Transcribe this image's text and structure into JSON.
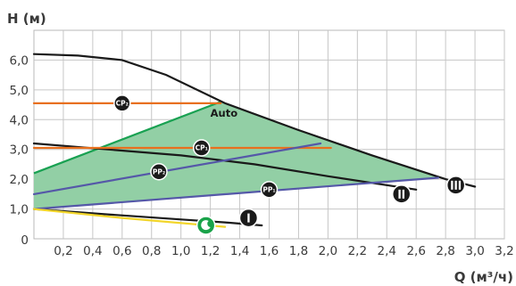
{
  "chart_data": {
    "type": "line",
    "ylabel": "H (м)",
    "xlabel": "Q (м³/ч)",
    "xlim": [
      0,
      3.2
    ],
    "ylim": [
      0,
      7
    ],
    "grid": true,
    "x_ticks": [
      {
        "v": 0.2,
        "label": "0,2"
      },
      {
        "v": 0.4,
        "label": "0,4"
      },
      {
        "v": 0.6,
        "label": "0,6"
      },
      {
        "v": 0.8,
        "label": "0,8"
      },
      {
        "v": 1.0,
        "label": "1,0"
      },
      {
        "v": 1.2,
        "label": "1,2"
      },
      {
        "v": 1.4,
        "label": "1,4"
      },
      {
        "v": 1.6,
        "label": "1,6"
      },
      {
        "v": 1.8,
        "label": "1,8"
      },
      {
        "v": 2.0,
        "label": "2,0"
      },
      {
        "v": 2.2,
        "label": "2,2"
      },
      {
        "v": 2.4,
        "label": "2,4"
      },
      {
        "v": 2.6,
        "label": "2,6"
      },
      {
        "v": 2.8,
        "label": "2,8"
      },
      {
        "v": 3.0,
        "label": "3,0"
      },
      {
        "v": 3.2,
        "label": "3,2"
      }
    ],
    "y_ticks": [
      {
        "v": 1,
        "label": "1,0"
      },
      {
        "v": 2,
        "label": "2,0"
      },
      {
        "v": 3,
        "label": "3,0"
      },
      {
        "v": 4,
        "label": "4,0"
      },
      {
        "v": 5,
        "label": "5,0"
      },
      {
        "v": 6,
        "label": "6,0"
      }
    ],
    "origin_label": "0",
    "auto_area": {
      "label": "Auto",
      "color": "#92cfa5",
      "border": "#19a152",
      "points": [
        [
          0,
          2.2
        ],
        [
          1.27,
          4.6
        ],
        [
          1.8,
          3.65
        ],
        [
          2.77,
          2.05
        ],
        [
          0,
          1.0
        ]
      ]
    },
    "series": [
      {
        "badge": "III",
        "color": "#1a1a1a",
        "dash": false,
        "points": [
          [
            0,
            6.2
          ],
          [
            0.3,
            6.15
          ],
          [
            0.6,
            6.0
          ],
          [
            0.9,
            5.5
          ],
          [
            1.3,
            4.55
          ],
          [
            1.8,
            3.65
          ],
          [
            2.3,
            2.8
          ],
          [
            2.8,
            2.0
          ],
          [
            3.0,
            1.75
          ]
        ]
      },
      {
        "badge": "II",
        "color": "#1a1a1a",
        "dash": false,
        "points": [
          [
            0,
            3.2
          ],
          [
            0.5,
            3.0
          ],
          [
            1.0,
            2.8
          ],
          [
            1.5,
            2.5
          ],
          [
            2.0,
            2.1
          ],
          [
            2.4,
            1.8
          ],
          [
            2.6,
            1.65
          ]
        ]
      },
      {
        "badge": "I",
        "color": "#1a1a1a",
        "dash": false,
        "points": [
          [
            0,
            1.0
          ],
          [
            0.5,
            0.82
          ],
          [
            1.0,
            0.65
          ],
          [
            1.3,
            0.55
          ],
          [
            1.55,
            0.45
          ]
        ]
      },
      {
        "badge": "CP2",
        "color": "#e8701e",
        "dash": false,
        "points": [
          [
            0,
            4.55
          ],
          [
            1.27,
            4.55
          ]
        ]
      },
      {
        "badge": "CP1",
        "color": "#e8701e",
        "dash": false,
        "points": [
          [
            0,
            3.05
          ],
          [
            2.02,
            3.05
          ]
        ]
      },
      {
        "badge": "PP2",
        "color": "#5558a8",
        "dash": false,
        "points": [
          [
            0,
            1.5
          ],
          [
            1.95,
            3.2
          ]
        ]
      },
      {
        "badge": "PP1",
        "color": "#5558a8",
        "dash": false,
        "points": [
          [
            0,
            1.0
          ],
          [
            2.75,
            2.05
          ]
        ]
      },
      {
        "badge": "NIGHT",
        "color": "#f2d52a",
        "dash": false,
        "points": [
          [
            0,
            1.0
          ],
          [
            0.6,
            0.7
          ],
          [
            1.3,
            0.4
          ]
        ]
      }
    ],
    "badges": [
      {
        "id": "CP2",
        "text": "CP₂",
        "color": "#1a1a1a",
        "at": [
          0.6,
          4.55
        ],
        "r": 9
      },
      {
        "id": "CP1",
        "text": "CP₁",
        "color": "#1a1a1a",
        "at": [
          1.14,
          3.05
        ],
        "r": 9
      },
      {
        "id": "PP2",
        "text": "PP₂",
        "color": "#1a1a1a",
        "at": [
          0.85,
          2.25
        ],
        "r": 9
      },
      {
        "id": "PP1",
        "text": "PP₁",
        "color": "#1a1a1a",
        "at": [
          1.6,
          1.65
        ],
        "r": 9
      },
      {
        "id": "III",
        "text": "III",
        "color": "#1a1a1a",
        "at": [
          2.87,
          1.8
        ],
        "r": 10
      },
      {
        "id": "II",
        "text": "II",
        "color": "#1a1a1a",
        "at": [
          2.5,
          1.5
        ],
        "r": 10
      },
      {
        "id": "I",
        "text": "I",
        "color": "#1a1a1a",
        "at": [
          1.46,
          0.7
        ],
        "r": 10
      },
      {
        "id": "NIGHT",
        "text": "",
        "color": "#1aa34a",
        "at": [
          1.17,
          0.45
        ],
        "r": 10
      }
    ]
  }
}
